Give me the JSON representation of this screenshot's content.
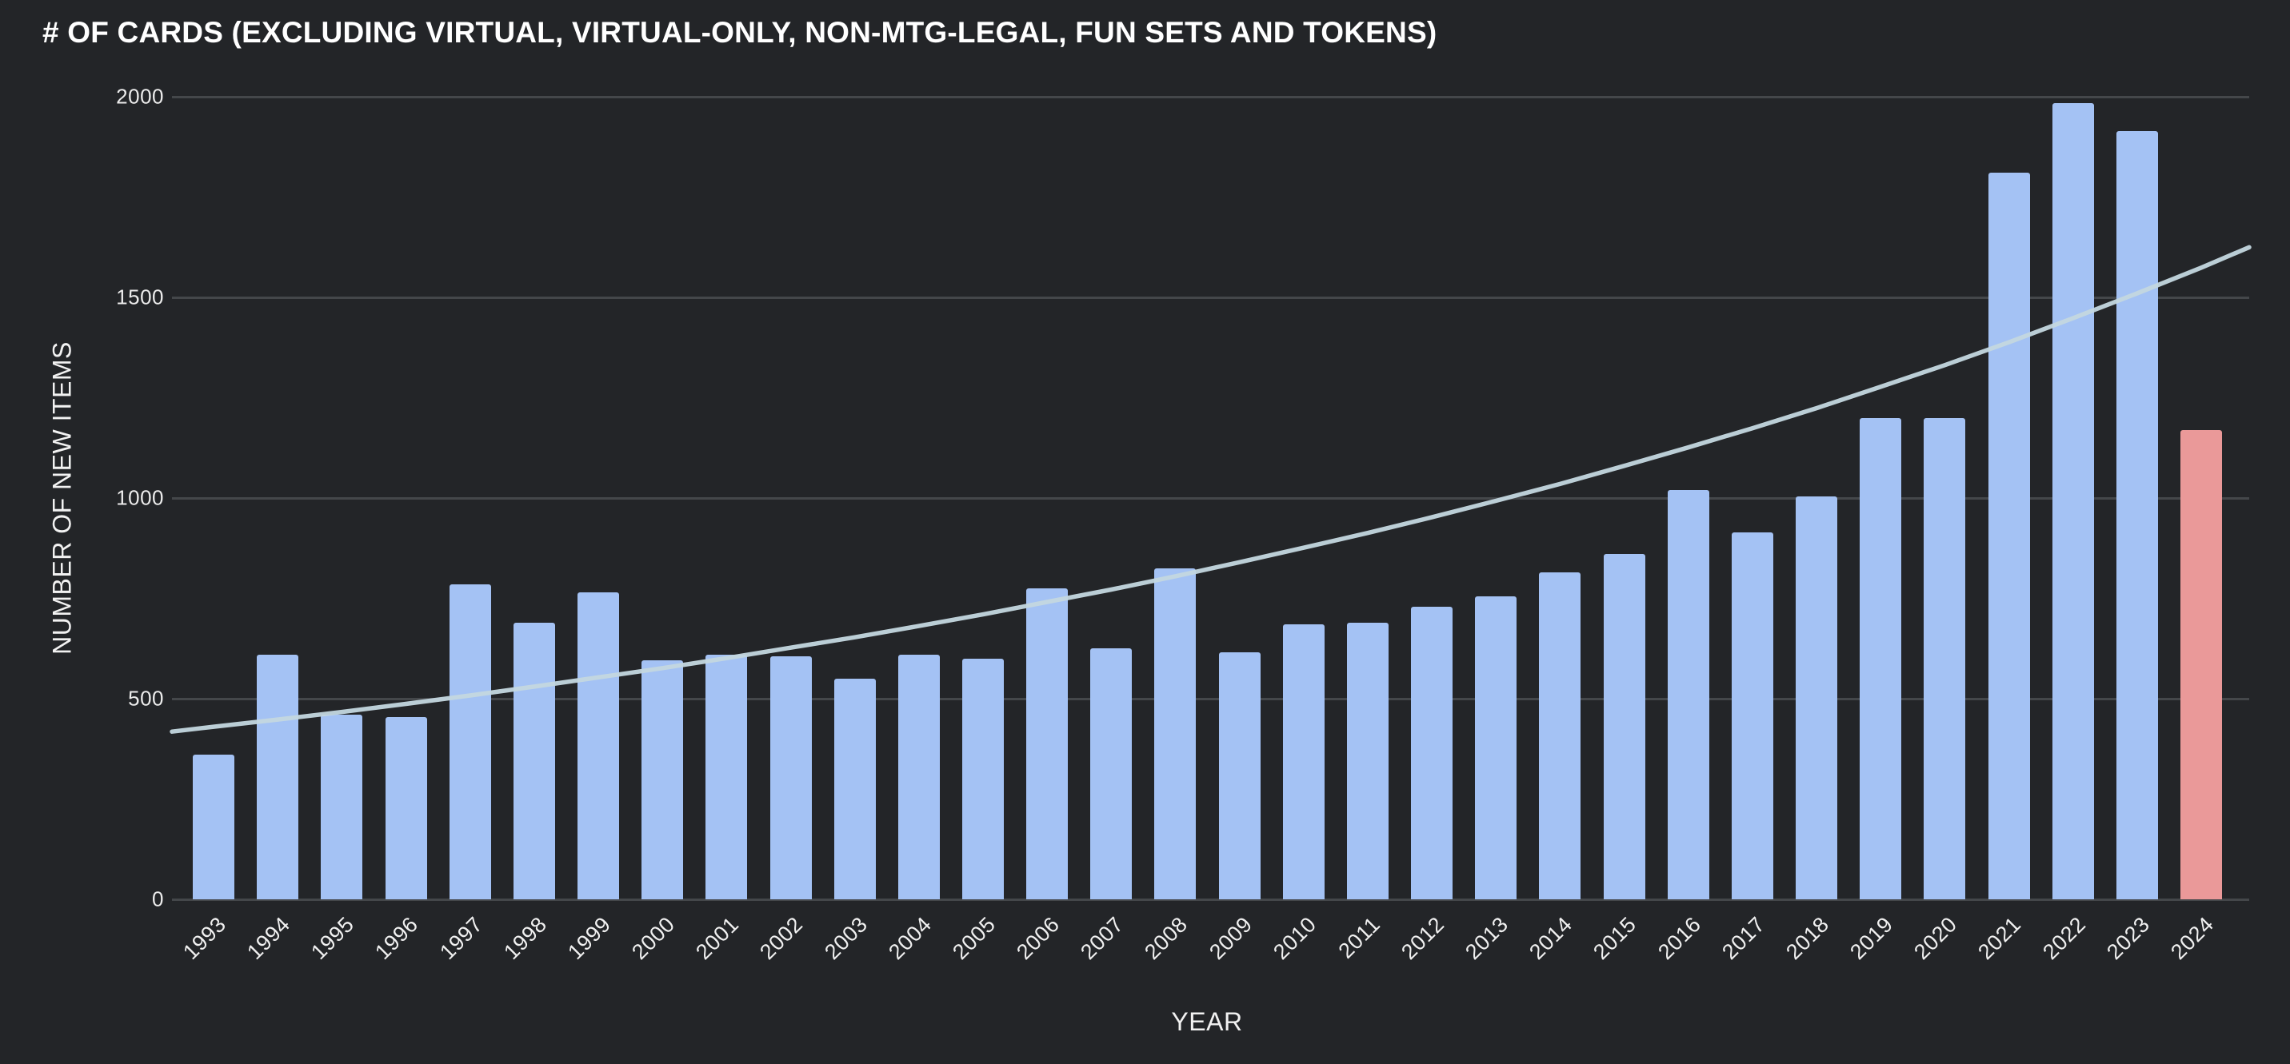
{
  "title": "# OF CARDS (EXCLUDING VIRTUAL, VIRTUAL-ONLY, NON-MTG-LEGAL, FUN SETS AND TOKENS)",
  "x_axis": {
    "label": "YEAR"
  },
  "y_axis": {
    "label": "NUMBER OF NEW ITEMS",
    "ticks": [
      0,
      500,
      1000,
      1500,
      2000
    ]
  },
  "chart_data": {
    "type": "bar",
    "title": "# OF CARDS (EXCLUDING VIRTUAL, VIRTUAL-ONLY, NON-MTG-LEGAL, FUN SETS AND TOKENS)",
    "xlabel": "YEAR",
    "ylabel": "NUMBER OF NEW ITEMS",
    "ylim": [
      0,
      2000
    ],
    "grid": true,
    "legend_position": "none",
    "categories": [
      "1993",
      "1994",
      "1995",
      "1996",
      "1997",
      "1998",
      "1999",
      "2000",
      "2001",
      "2002",
      "2003",
      "2004",
      "2005",
      "2006",
      "2007",
      "2008",
      "2009",
      "2010",
      "2011",
      "2012",
      "2013",
      "2014",
      "2015",
      "2016",
      "2017",
      "2018",
      "2019",
      "2020",
      "2021",
      "2022",
      "2023",
      "2024"
    ],
    "series": [
      {
        "name": "Number of new items",
        "values": [
          360,
          610,
          460,
          455,
          785,
          690,
          765,
          595,
          610,
          605,
          550,
          610,
          600,
          775,
          625,
          825,
          615,
          685,
          690,
          730,
          755,
          815,
          860,
          1020,
          915,
          1005,
          1200,
          1200,
          1810,
          1985,
          1915,
          1170
        ]
      }
    ],
    "trendline": {
      "name": "exponential-trend",
      "values": [
        430,
        448,
        467,
        487,
        508,
        530,
        553,
        576,
        601,
        627,
        653,
        681,
        710,
        741,
        772,
        805,
        840,
        876,
        913,
        952,
        993,
        1035,
        1080,
        1126,
        1174,
        1224,
        1277,
        1331,
        1388,
        1448,
        1510,
        1574
      ],
      "edge_start": 418,
      "edge_end": 1625
    },
    "highlight": {
      "category": "2024",
      "color": "#ea9999"
    },
    "colors": {
      "bar": "#a4c2f4",
      "highlight_bar": "#ea9999",
      "trendline": "#c4d7df",
      "background": "#232528",
      "gridline": "#44474a",
      "tick_text": "#ececec",
      "title_text": "#ffffff"
    }
  }
}
